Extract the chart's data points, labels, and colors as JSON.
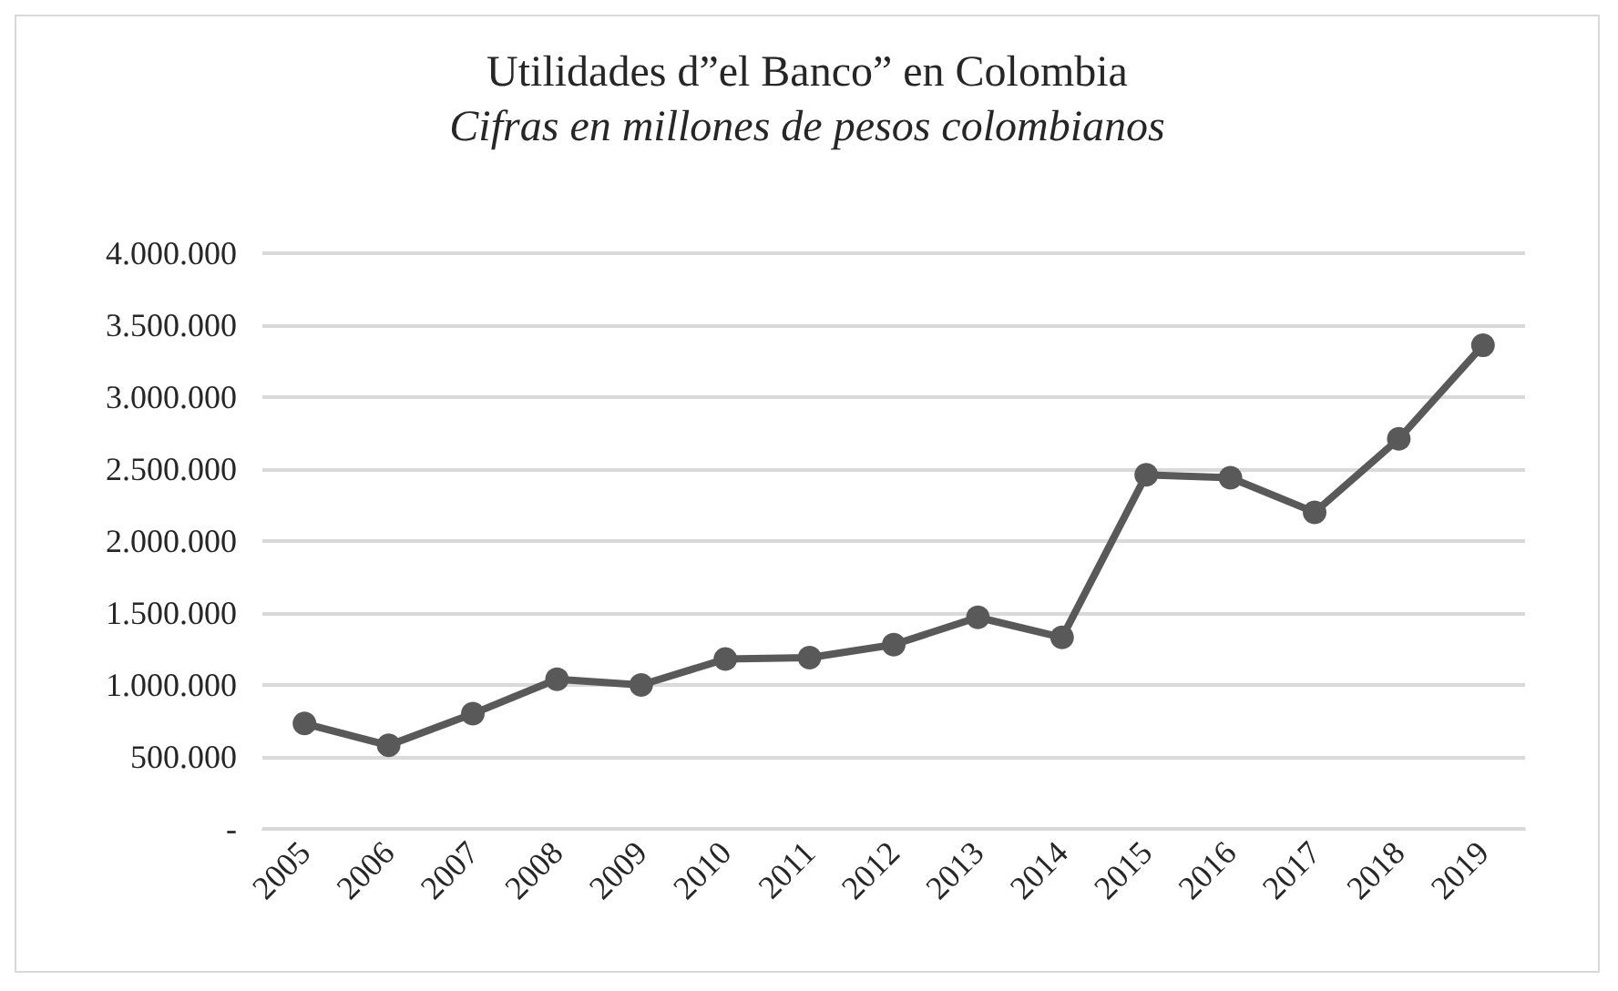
{
  "chart_data": {
    "type": "line",
    "title": "Utilidades d”el Banco” en Colombia",
    "subtitle": "Cifras en millones de pesos colombianos",
    "categories": [
      "2005",
      "2006",
      "2007",
      "2008",
      "2009",
      "2010",
      "2011",
      "2012",
      "2013",
      "2014",
      "2015",
      "2016",
      "2017",
      "2018",
      "2019"
    ],
    "series": [
      {
        "color": "#595959",
        "values": [
          732000,
          580000,
          800000,
          1040000,
          1000000,
          1180000,
          1190000,
          1280000,
          1470000,
          1330000,
          2460000,
          2440000,
          2200000,
          2710000,
          3360000
        ]
      }
    ],
    "ylim": [
      0,
      4000000
    ],
    "yticks": [
      {
        "value": 0,
        "label": "-"
      },
      {
        "value": 500000,
        "label": "500.000"
      },
      {
        "value": 1000000,
        "label": "1.000.000"
      },
      {
        "value": 1500000,
        "label": "1.500.000"
      },
      {
        "value": 2000000,
        "label": "2.000.000"
      },
      {
        "value": 2500000,
        "label": "2.500.000"
      },
      {
        "value": 3000000,
        "label": "3.000.000"
      },
      {
        "value": 3500000,
        "label": "3.500.000"
      },
      {
        "value": 4000000,
        "label": "4.000.000"
      }
    ],
    "grid": "y",
    "marker": "circle",
    "line_style": "solid"
  }
}
